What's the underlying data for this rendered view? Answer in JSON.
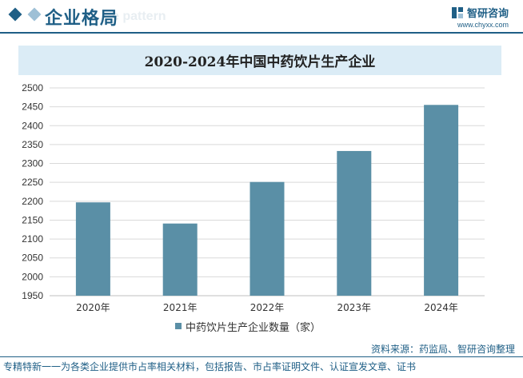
{
  "header": {
    "title": "企业格局",
    "ghost_text": "e pattern",
    "brand_name": "智研咨询",
    "brand_url": "www.chyxx.com"
  },
  "chart_data": {
    "type": "bar",
    "title": "2020-2024年中国中药饮片生产企业",
    "categories": [
      "2020年",
      "2021年",
      "2022年",
      "2023年",
      "2024年"
    ],
    "series": [
      {
        "name": "中药饮片生产企业数量（家）",
        "values": [
          2197,
          2141,
          2251,
          2333,
          2455
        ]
      }
    ],
    "ylim": [
      1950,
      2500
    ],
    "yticks": [
      1950,
      2000,
      2050,
      2100,
      2150,
      2200,
      2250,
      2300,
      2350,
      2400,
      2450,
      2500
    ],
    "grid": true,
    "legend_position": "bottom",
    "bar_color": "#5a8fa6"
  },
  "source": "资料来源：药监局、智研咨询整理",
  "footer": "专精特新一一为各类企业提供市占率相关材料，包括报告、市占率证明文件、认证宣发文章、证书"
}
